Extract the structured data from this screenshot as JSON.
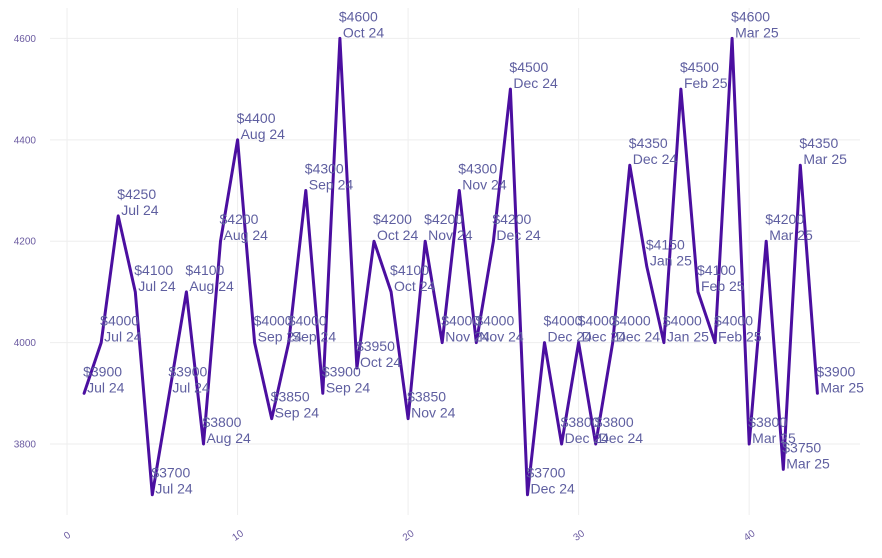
{
  "chart_data": {
    "type": "line",
    "title": "",
    "xlabel": "",
    "ylabel": "",
    "xlim": [
      -1,
      46.5
    ],
    "ylim": [
      3660,
      4660
    ],
    "grid": true,
    "legend": "none",
    "line_color": "#4b0fa0",
    "label_color": "#5f5fa0",
    "xticks": [
      0,
      10,
      20,
      30,
      40
    ],
    "yticks": [
      3800,
      4000,
      4200,
      4400,
      4600
    ],
    "points": [
      {
        "x": 1,
        "y": 3900,
        "price": "$3900",
        "month": "Jul 24"
      },
      {
        "x": 2,
        "y": 4000,
        "price": "$4000",
        "month": "Jul 24"
      },
      {
        "x": 3,
        "y": 4250,
        "price": "$4250",
        "month": "Jul 24"
      },
      {
        "x": 4,
        "y": 4100,
        "price": "$4100",
        "month": "Jul 24"
      },
      {
        "x": 5,
        "y": 3700,
        "price": "$3700",
        "month": "Jul 24"
      },
      {
        "x": 6,
        "y": 3900,
        "price": "$3900",
        "month": "Jul 24"
      },
      {
        "x": 7,
        "y": 4100,
        "price": "$4100",
        "month": "Aug 24"
      },
      {
        "x": 8,
        "y": 3800,
        "price": "$3800",
        "month": "Aug 24"
      },
      {
        "x": 9,
        "y": 4200,
        "price": "$4200",
        "month": "Aug 24"
      },
      {
        "x": 10,
        "y": 4400,
        "price": "$4400",
        "month": "Aug 24"
      },
      {
        "x": 11,
        "y": 4000,
        "price": "$4000",
        "month": "Sep 24"
      },
      {
        "x": 12,
        "y": 3850,
        "price": "$3850",
        "month": "Sep 24"
      },
      {
        "x": 13,
        "y": 4000,
        "price": "$4000",
        "month": "Sep 24"
      },
      {
        "x": 14,
        "y": 4300,
        "price": "$4300",
        "month": "Sep 24"
      },
      {
        "x": 15,
        "y": 3900,
        "price": "$3900",
        "month": "Sep 24"
      },
      {
        "x": 16,
        "y": 4600,
        "price": "$4600",
        "month": "Oct 24"
      },
      {
        "x": 17,
        "y": 3950,
        "price": "$3950",
        "month": "Oct 24"
      },
      {
        "x": 18,
        "y": 4200,
        "price": "$4200",
        "month": "Oct 24"
      },
      {
        "x": 19,
        "y": 4100,
        "price": "$4100",
        "month": "Oct 24"
      },
      {
        "x": 20,
        "y": 3850,
        "price": "$3850",
        "month": "Nov 24"
      },
      {
        "x": 21,
        "y": 4200,
        "price": "$4200",
        "month": "Nov 24"
      },
      {
        "x": 22,
        "y": 4000,
        "price": "$4000",
        "month": "Nov 24"
      },
      {
        "x": 23,
        "y": 4300,
        "price": "$4300",
        "month": "Nov 24"
      },
      {
        "x": 24,
        "y": 4000,
        "price": "$4000",
        "month": "Nov 24"
      },
      {
        "x": 25,
        "y": 4200,
        "price": "$4200",
        "month": "Dec 24"
      },
      {
        "x": 26,
        "y": 4500,
        "price": "$4500",
        "month": "Dec 24"
      },
      {
        "x": 27,
        "y": 3700,
        "price": "$3700",
        "month": "Dec 24"
      },
      {
        "x": 28,
        "y": 4000,
        "price": "$4000",
        "month": "Dec 24"
      },
      {
        "x": 29,
        "y": 3800,
        "price": "$3800",
        "month": "Dec 24"
      },
      {
        "x": 30,
        "y": 4000,
        "price": "$4000",
        "month": "Dec 24"
      },
      {
        "x": 31,
        "y": 3800,
        "price": "$3800",
        "month": "Dec 24"
      },
      {
        "x": 32,
        "y": 4000,
        "price": "$4000",
        "month": "Dec 24"
      },
      {
        "x": 33,
        "y": 4350,
        "price": "$4350",
        "month": "Dec 24"
      },
      {
        "x": 34,
        "y": 4150,
        "price": "$4150",
        "month": "Jan 25"
      },
      {
        "x": 35,
        "y": 4000,
        "price": "$4000",
        "month": "Jan 25"
      },
      {
        "x": 36,
        "y": 4500,
        "price": "$4500",
        "month": "Feb 25"
      },
      {
        "x": 37,
        "y": 4100,
        "price": "$4100",
        "month": "Feb 25"
      },
      {
        "x": 38,
        "y": 4000,
        "price": "$4000",
        "month": "Feb 25"
      },
      {
        "x": 39,
        "y": 4600,
        "price": "$4600",
        "month": "Mar 25"
      },
      {
        "x": 40,
        "y": 3800,
        "price": "$3800",
        "month": "Mar 25"
      },
      {
        "x": 41,
        "y": 4200,
        "price": "$4200",
        "month": "Mar 25"
      },
      {
        "x": 42,
        "y": 3750,
        "price": "$3750",
        "month": "Mar 25"
      },
      {
        "x": 43,
        "y": 4350,
        "price": "$4350",
        "month": "Mar 25"
      },
      {
        "x": 44,
        "y": 3900,
        "price": "$3900",
        "month": "Mar 25"
      }
    ]
  }
}
